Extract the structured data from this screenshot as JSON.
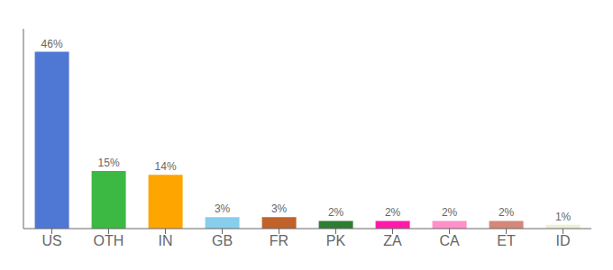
{
  "chart_data": {
    "type": "bar",
    "categories": [
      "US",
      "OTH",
      "IN",
      "GB",
      "FR",
      "PK",
      "ZA",
      "CA",
      "ET",
      "ID"
    ],
    "values": [
      46,
      15,
      14,
      3,
      3,
      2,
      2,
      2,
      2,
      1
    ],
    "value_labels": [
      "46%",
      "15%",
      "14%",
      "3%",
      "3%",
      "2%",
      "2%",
      "2%",
      "2%",
      "1%"
    ],
    "colors": [
      "#4f77d4",
      "#3cb943",
      "#ffa500",
      "#87ceeb",
      "#c0622a",
      "#2e7d32",
      "#ff1aaa",
      "#ff90c8",
      "#d4887a",
      "#efefd5"
    ],
    "ylim": [
      0,
      52
    ],
    "data_labels": true,
    "tick_labels": "x",
    "grid": false
  }
}
